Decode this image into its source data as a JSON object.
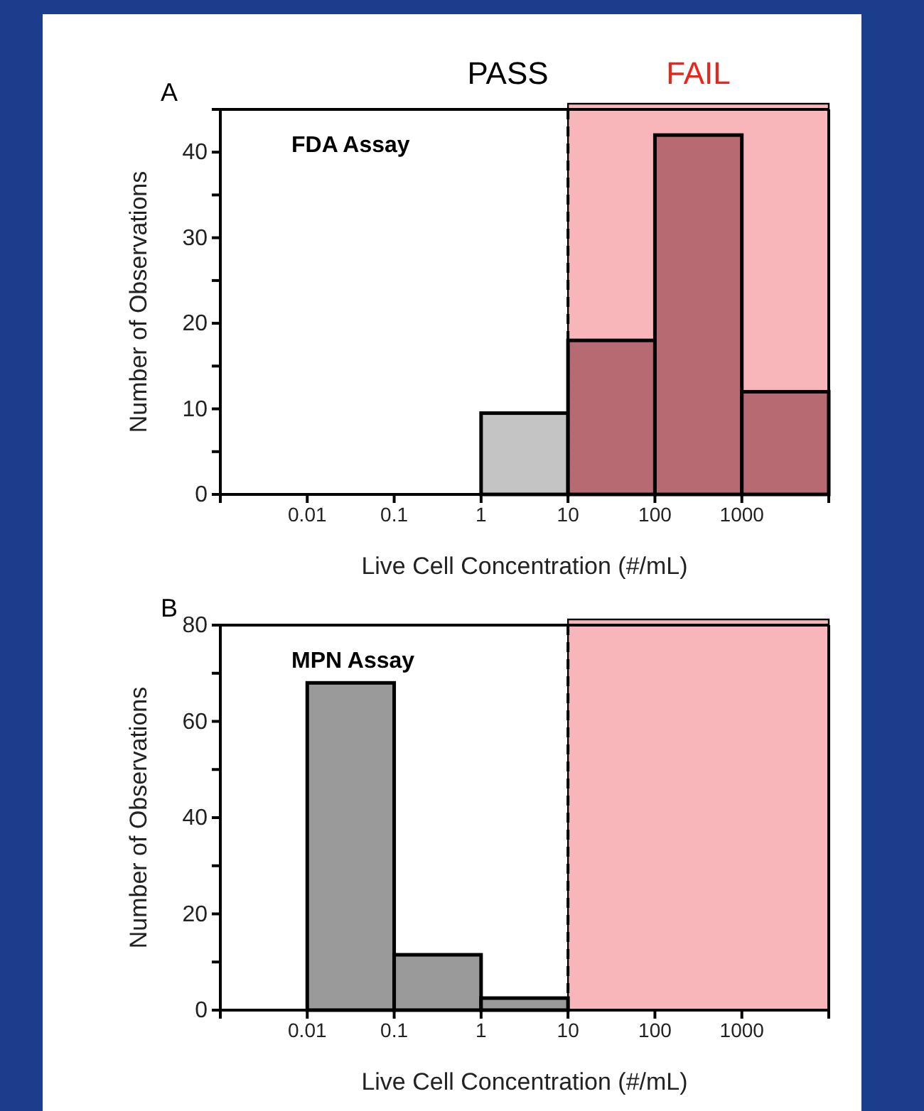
{
  "chart_data": [
    {
      "type": "histogram",
      "title": "FDA Assay",
      "xlabel": "Live Cell Concentration (#/mL)",
      "ylabel": "Number of Observations",
      "annotations": [
        "A",
        "PASS"
      ],
      "bins": [
        1,
        10,
        100,
        1000,
        10000
      ],
      "values": [
        9.5,
        18,
        42,
        12
      ],
      "colors": [
        "#c4c4c4",
        "#b86a72",
        "#b86a72",
        "#b86a72"
      ],
      "log": "x",
      "xlim": [
        0.001,
        10000
      ],
      "xticks": [
        0.01,
        0.1,
        1,
        10,
        100,
        1000
      ],
      "ylim": [
        0,
        45
      ],
      "yticks": [
        0,
        {
          "value": 5,
          "label": null
        },
        10,
        {
          "value": 15,
          "label": null
        },
        20,
        {
          "value": 25,
          "label": null
        },
        30,
        {
          "value": 35,
          "label": null
        },
        40,
        {
          "value": 45,
          "label": null
        }
      ],
      "ref_lines": [
        {
          "axis": "x",
          "value": 10,
          "color": "#000000",
          "line_style": "dashed"
        }
      ],
      "bands": [
        {
          "axis": "x",
          "from": 10,
          "to": 10000,
          "label": "FAIL",
          "color": "#f9b6ba"
        }
      ]
    },
    {
      "type": "histogram",
      "title": "MPN Assay",
      "xlabel": "Live Cell Concentration (#/mL)",
      "ylabel": "Number of Observations",
      "annotations": [
        "B"
      ],
      "bins": [
        0.01,
        0.1,
        1,
        10
      ],
      "values": [
        68,
        11.5,
        2.5
      ],
      "colors": [
        "#9a9a9a",
        "#9a9a9a",
        "#9a9a9a"
      ],
      "log": "x",
      "xlim": [
        0.001,
        10000
      ],
      "xticks": [
        0.01,
        0.1,
        1,
        10,
        100,
        1000
      ],
      "ylim": [
        0,
        80
      ],
      "yticks": [
        0,
        {
          "value": 10,
          "label": null
        },
        20,
        {
          "value": 30,
          "label": null
        },
        40,
        {
          "value": 50,
          "label": null
        },
        60,
        {
          "value": 70,
          "label": null
        },
        80
      ],
      "ref_lines": [
        {
          "axis": "x",
          "value": 10,
          "color": "#000000",
          "line_style": "dashed"
        }
      ],
      "bands": [
        {
          "axis": "x",
          "from": 10,
          "to": 10000,
          "color": "#f9b6ba"
        }
      ]
    }
  ]
}
